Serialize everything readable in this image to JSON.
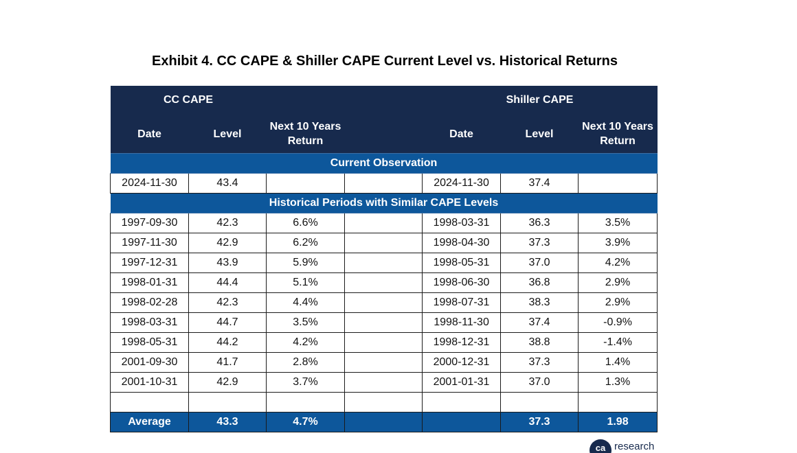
{
  "title": "Exhibit 4. CC CAPE & Shiller CAPE Current Level vs. Historical Returns",
  "groups": {
    "cc": "CC CAPE",
    "shiller": "Shiller CAPE"
  },
  "columns": {
    "date": "Date",
    "level": "Level",
    "ret_line1": "Next 10 Years",
    "ret_line2": "Return"
  },
  "sections": {
    "current": "Current Observation",
    "historical": "Historical Periods with Similar CAPE Levels"
  },
  "current": {
    "cc_date": "2024-11-30",
    "cc_level": "43.4",
    "cc_return": "",
    "sh_date": "2024-11-30",
    "sh_level": "37.4",
    "sh_return": ""
  },
  "rows": [
    {
      "cc_date": "1997-09-30",
      "cc_level": "42.3",
      "cc_return": "6.6%",
      "sh_date": "1998-03-31",
      "sh_level": "36.3",
      "sh_return": "3.5%"
    },
    {
      "cc_date": "1997-11-30",
      "cc_level": "42.9",
      "cc_return": "6.2%",
      "sh_date": "1998-04-30",
      "sh_level": "37.3",
      "sh_return": "3.9%"
    },
    {
      "cc_date": "1997-12-31",
      "cc_level": "43.9",
      "cc_return": "5.9%",
      "sh_date": "1998-05-31",
      "sh_level": "37.0",
      "sh_return": "4.2%"
    },
    {
      "cc_date": "1998-01-31",
      "cc_level": "44.4",
      "cc_return": "5.1%",
      "sh_date": "1998-06-30",
      "sh_level": "36.8",
      "sh_return": "2.9%"
    },
    {
      "cc_date": "1998-02-28",
      "cc_level": "42.3",
      "cc_return": "4.4%",
      "sh_date": "1998-07-31",
      "sh_level": "38.3",
      "sh_return": "2.9%"
    },
    {
      "cc_date": "1998-03-31",
      "cc_level": "44.7",
      "cc_return": "3.5%",
      "sh_date": "1998-11-30",
      "sh_level": "37.4",
      "sh_return": "-0.9%"
    },
    {
      "cc_date": "1998-05-31",
      "cc_level": "44.2",
      "cc_return": "4.2%",
      "sh_date": "1998-12-31",
      "sh_level": "38.8",
      "sh_return": "-1.4%"
    },
    {
      "cc_date": "2001-09-30",
      "cc_level": "41.7",
      "cc_return": "2.8%",
      "sh_date": "2000-12-31",
      "sh_level": "37.3",
      "sh_return": "1.4%"
    },
    {
      "cc_date": "2001-10-31",
      "cc_level": "42.9",
      "cc_return": "3.7%",
      "sh_date": "2001-01-31",
      "sh_level": "37.0",
      "sh_return": "1.3%"
    },
    {
      "cc_date": "",
      "cc_level": "",
      "cc_return": "",
      "sh_date": "",
      "sh_level": "",
      "sh_return": ""
    }
  ],
  "average": {
    "label": "Average",
    "cc_level": "43.3",
    "cc_return": "4.7%",
    "sh_date": "",
    "sh_level": "37.3",
    "sh_return": "1.98"
  },
  "logo": {
    "text": "research"
  },
  "colors": {
    "header": "#172a4d",
    "section": "#0d579b"
  }
}
